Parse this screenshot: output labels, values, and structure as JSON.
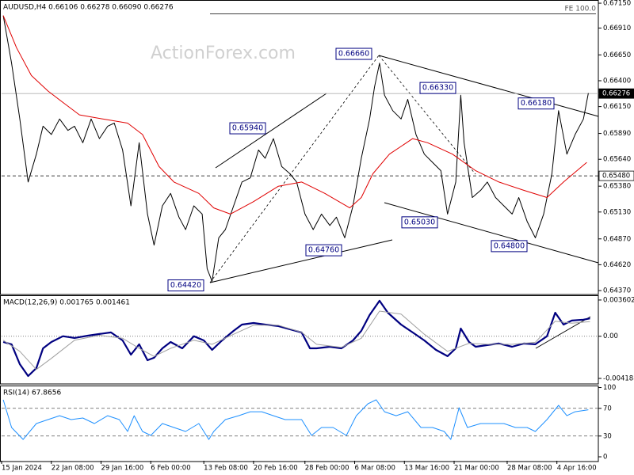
{
  "chart_data": [
    {
      "type": "line",
      "title": "AUDUSD,H4 0.66106 0.66278 0.66090 0.66276",
      "watermark": "ActionForex.com",
      "fe_label": "FE 100.0",
      "xlim": [
        0,
        360
      ],
      "ylim": [
        0.64332,
        0.67181
      ],
      "yticks": [
        {
          "value": 0.6715,
          "label": "0.67150"
        },
        {
          "value": 0.6691,
          "label": "0.66910"
        },
        {
          "value": 0.6665,
          "label": "0.66650"
        },
        {
          "value": 0.664,
          "label": "0.66400"
        },
        {
          "value": 0.6615,
          "label": "0.66150"
        },
        {
          "value": 0.6589,
          "label": "0.65890"
        },
        {
          "value": 0.6564,
          "label": "0.65640"
        },
        {
          "value": 0.6538,
          "label": "0.65380"
        },
        {
          "value": 0.6513,
          "label": "0.65130"
        },
        {
          "value": 0.6487,
          "label": "0.64870"
        },
        {
          "value": 0.6462,
          "label": "0.64620"
        },
        {
          "value": 0.6437,
          "label": "0.64370"
        }
      ],
      "hlines": [
        {
          "value": 0.66276,
          "label": "0.66276",
          "style": "current"
        },
        {
          "value": 0.6548,
          "label": "0.65480",
          "style": "dashed"
        }
      ],
      "annotations": [
        {
          "value": 0.6666,
          "label": "0.66660"
        },
        {
          "value": 0.6633,
          "label": "0.66330"
        },
        {
          "value": 0.6618,
          "label": "0.66180"
        },
        {
          "value": 0.6594,
          "label": "0.65940"
        },
        {
          "value": 0.6476,
          "label": "0.64760"
        },
        {
          "value": 0.6442,
          "label": "0.64420"
        },
        {
          "value": 0.6503,
          "label": "0.65030"
        },
        {
          "value": 0.648,
          "label": "0.64800"
        }
      ],
      "series": [
        {
          "color": "#000000",
          "width": 1,
          "x": [
            1,
            6,
            11,
            16,
            21,
            25,
            30,
            35,
            40,
            44,
            49,
            54,
            59,
            64,
            68,
            73,
            78,
            83,
            88,
            92,
            97,
            102,
            107,
            111,
            116,
            121,
            124,
            127,
            131,
            135,
            140,
            145,
            150,
            155,
            159,
            164,
            169,
            174,
            178,
            183,
            188,
            193,
            198,
            202,
            207,
            212,
            217,
            222,
            225,
            228,
            231,
            236,
            241,
            245,
            250,
            255,
            260,
            265,
            269,
            274,
            277,
            279,
            284,
            289,
            293,
            298,
            303,
            308,
            312,
            317,
            322,
            327,
            332,
            336,
            341,
            346,
            351,
            354
          ],
          "values": [
            0.6703,
            0.6657,
            0.6603,
            0.6542,
            0.6569,
            0.6596,
            0.6588,
            0.6603,
            0.6592,
            0.6596,
            0.658,
            0.6603,
            0.6584,
            0.6596,
            0.6599,
            0.6573,
            0.6519,
            0.658,
            0.6511,
            0.6481,
            0.6519,
            0.6531,
            0.6508,
            0.6496,
            0.6519,
            0.6511,
            0.6458,
            0.6446,
            0.6488,
            0.6496,
            0.6519,
            0.6542,
            0.6546,
            0.6573,
            0.6565,
            0.6584,
            0.6557,
            0.655,
            0.6542,
            0.6511,
            0.6496,
            0.6511,
            0.65,
            0.6508,
            0.6488,
            0.6519,
            0.6565,
            0.6603,
            0.6634,
            0.6657,
            0.6626,
            0.6611,
            0.6603,
            0.6622,
            0.6588,
            0.6569,
            0.6561,
            0.6553,
            0.6511,
            0.6542,
            0.6626,
            0.658,
            0.6527,
            0.6534,
            0.6542,
            0.6527,
            0.6519,
            0.6511,
            0.6527,
            0.6504,
            0.6488,
            0.6511,
            0.655,
            0.6611,
            0.6569,
            0.6588,
            0.6603,
            0.6628
          ]
        },
        {
          "color": "#e00000",
          "width": 1,
          "x": [
            1,
            9,
            18,
            28,
            37,
            47,
            61,
            76,
            85,
            95,
            104,
            119,
            128,
            138,
            152,
            167,
            181,
            195,
            210,
            217,
            224,
            234,
            248,
            257,
            272,
            286,
            300,
            315,
            329,
            339,
            353
          ],
          "values": [
            0.6703,
            0.6672,
            0.6645,
            0.663,
            0.6619,
            0.6607,
            0.6603,
            0.6599,
            0.6588,
            0.6557,
            0.6542,
            0.6531,
            0.6517,
            0.6511,
            0.6523,
            0.6538,
            0.6542,
            0.6531,
            0.6517,
            0.6527,
            0.655,
            0.6569,
            0.6584,
            0.658,
            0.6569,
            0.6553,
            0.6542,
            0.6534,
            0.6527,
            0.6542,
            0.6561
          ]
        }
      ]
    },
    {
      "type": "line",
      "title": "MACD(12,26,9) 0.001765 0.001461",
      "xlim": [
        0,
        360
      ],
      "ylim": [
        -0.00474,
        0.00407
      ],
      "yticks": [
        0.003602,
        {
          "value": 0,
          "label": "0.00"
        },
        -0.004188
      ],
      "levels": [
        0
      ],
      "series": [
        {
          "color": "#000080",
          "width": 2.2,
          "x": [
            1,
            6,
            11,
            16,
            21,
            25,
            30,
            37,
            44,
            52,
            59,
            66,
            73,
            78,
            83,
            88,
            92,
            97,
            102,
            109,
            116,
            122,
            127,
            133,
            140,
            145,
            152,
            159,
            167,
            174,
            181,
            186,
            190,
            198,
            205,
            212,
            217,
            222,
            228,
            233,
            241,
            248,
            255,
            262,
            269,
            274,
            277,
            282,
            286,
            293,
            300,
            308,
            315,
            322,
            329,
            334,
            339,
            344,
            351,
            355
          ],
          "values": [
            -0.00057,
            -0.0008,
            -0.00277,
            -0.00395,
            -0.00316,
            -0.0012,
            -0.00057,
            0,
            -0.00017,
            6e-05,
            0.00022,
            0.00038,
            -0.00041,
            -0.00183,
            -0.0008,
            -0.00238,
            -0.00214,
            -0.0012,
            -0.00057,
            -0.0012,
            0,
            -0.00041,
            -0.00135,
            -0.00041,
            0.00054,
            0.00116,
            0.00132,
            0.00116,
            0.00101,
            0.00069,
            0.00038,
            -0.0012,
            -0.0012,
            -0.00104,
            -0.0012,
            -0.00041,
            0.00054,
            0.00211,
            0.00353,
            0.00234,
            0.00116,
            0.00038,
            -0.00041,
            -0.00135,
            -0.00198,
            -0.0012,
            0.00077,
            -0.00057,
            -0.00104,
            -0.00088,
            -0.00072,
            -0.00104,
            -0.00072,
            -0.0008,
            0,
            0.00234,
            0.00116,
            0.00156,
            0.00165,
            0.00177
          ]
        },
        {
          "color": "#a0a0a0",
          "width": 1,
          "x": [
            1,
            11,
            21,
            30,
            44,
            59,
            73,
            83,
            92,
            102,
            116,
            127,
            140,
            152,
            167,
            181,
            190,
            205,
            217,
            228,
            241,
            255,
            269,
            282,
            293,
            308,
            322,
            334,
            344,
            355
          ],
          "values": [
            -0.0004,
            -0.0015,
            -0.0033,
            -0.0022,
            -0.0004,
            0.0001,
            -0.0002,
            -0.0012,
            -0.002,
            -0.0012,
            -0.0004,
            -0.0008,
            0.0002,
            0.0011,
            0.0011,
            0.0004,
            -0.0008,
            -0.0011,
            -0.0002,
            0.0025,
            0.0022,
            0.0002,
            -0.0015,
            -0.0007,
            -0.0008,
            -0.0008,
            -0.0006,
            0.0015,
            0.0013,
            0.00146
          ]
        }
      ]
    },
    {
      "type": "line",
      "title": "RSI(14) 67.8656",
      "xlim": [
        0,
        360
      ],
      "ylim": [
        -5.7,
        102.9
      ],
      "yticks": [
        100,
        70,
        30,
        0
      ],
      "levels": [
        70,
        30
      ],
      "xticks": [
        {
          "value": 0,
          "label": "15 Jan 2024"
        },
        {
          "value": 30,
          "label": "22 Jan 08:00"
        },
        {
          "value": 60,
          "label": "29 Jan 16:00"
        },
        {
          "value": 90,
          "label": "6 Feb 00:00"
        },
        {
          "value": 122,
          "label": "13 Feb 08:00"
        },
        {
          "value": 152,
          "label": "20 Feb 16:00"
        },
        {
          "value": 183,
          "label": "28 Feb 00:00"
        },
        {
          "value": 213,
          "label": "6 Mar 08:00"
        },
        {
          "value": 243,
          "label": "13 Mar 16:00"
        },
        {
          "value": 273,
          "label": "21 Mar 00:00"
        },
        {
          "value": 305,
          "label": "28 Mar 08:00"
        },
        {
          "value": 335,
          "label": "4 Apr 16:00"
        }
      ],
      "series": [
        {
          "color": "#1e90ff",
          "width": 1,
          "x": [
            1,
            6,
            13,
            21,
            28,
            35,
            42,
            49,
            56,
            64,
            71,
            76,
            80,
            85,
            90,
            97,
            104,
            111,
            119,
            125,
            128,
            135,
            143,
            150,
            157,
            164,
            171,
            181,
            187,
            193,
            200,
            208,
            214,
            221,
            226,
            231,
            238,
            245,
            253,
            260,
            267,
            271,
            276,
            281,
            289,
            296,
            303,
            310,
            317,
            322,
            329,
            336,
            341,
            346,
            354
          ],
          "values": [
            82.3,
            42.3,
            25.1,
            48,
            53.7,
            59.4,
            53.7,
            56,
            48,
            59.4,
            53.7,
            36.6,
            59.4,
            36.6,
            30.9,
            48,
            42.3,
            36.6,
            48,
            25.1,
            36.6,
            53.7,
            59.4,
            65.1,
            65.1,
            59.4,
            53.7,
            53.7,
            30.9,
            42.3,
            42.3,
            30.9,
            59.4,
            76.6,
            82.3,
            65.1,
            59.4,
            65.1,
            42.3,
            42.3,
            36.6,
            25.1,
            70.9,
            42.3,
            48,
            48,
            48,
            42.3,
            42.3,
            36.6,
            53.7,
            74.3,
            59.4,
            65.1,
            67.9
          ]
        }
      ]
    }
  ]
}
